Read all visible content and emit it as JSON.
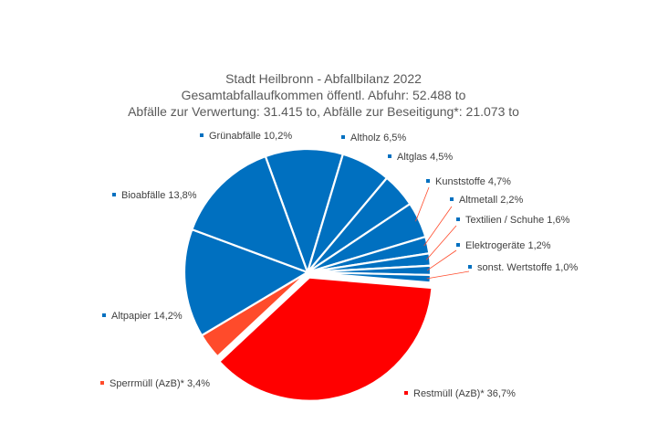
{
  "chart_data": {
    "type": "pie",
    "title_lines": [
      "Stadt Heilbronn - Abfallbilanz 2022",
      "Gesamtabfallaufkommen öffentl. Abfuhr: 52.488 to",
      "Abfälle zur Verwertung: 31.415 to, Abfälle zur Beseitigung*: 21.073 to"
    ],
    "slices": [
      {
        "label": "Grünabfälle 10,2%",
        "value": 10.2,
        "color": "#0070c0"
      },
      {
        "label": "Altholz 6,5%",
        "value": 6.5,
        "color": "#0070c0"
      },
      {
        "label": "Altglas 4,5%",
        "value": 4.5,
        "color": "#0070c0"
      },
      {
        "label": "Kunststoffe 4,7%",
        "value": 4.7,
        "color": "#0070c0"
      },
      {
        "label": "Altmetall 2,2%",
        "value": 2.2,
        "color": "#0070c0"
      },
      {
        "label": "Textilien / Schuhe 1,6%",
        "value": 1.6,
        "color": "#0070c0"
      },
      {
        "label": "Elektrogeräte 1,2%",
        "value": 1.2,
        "color": "#0070c0"
      },
      {
        "label": "sonst. Wertstoffe 1,0%",
        "value": 1.0,
        "color": "#0070c0"
      },
      {
        "label": "Restmüll (AzB)* 36,7%",
        "value": 36.7,
        "color": "#ff0000"
      },
      {
        "label": "Sperrmüll (AzB)* 3,4%",
        "value": 3.4,
        "color": "#ff4b2b"
      },
      {
        "label": "Altpapier 14,2%",
        "value": 14.2,
        "color": "#0070c0"
      },
      {
        "label": "Bioabfälle 13,8%",
        "value": 13.8,
        "color": "#0070c0"
      }
    ],
    "legend_marker_colors": {
      "verwertung": "#0070c0",
      "beseitigung": "#ff0000"
    }
  }
}
